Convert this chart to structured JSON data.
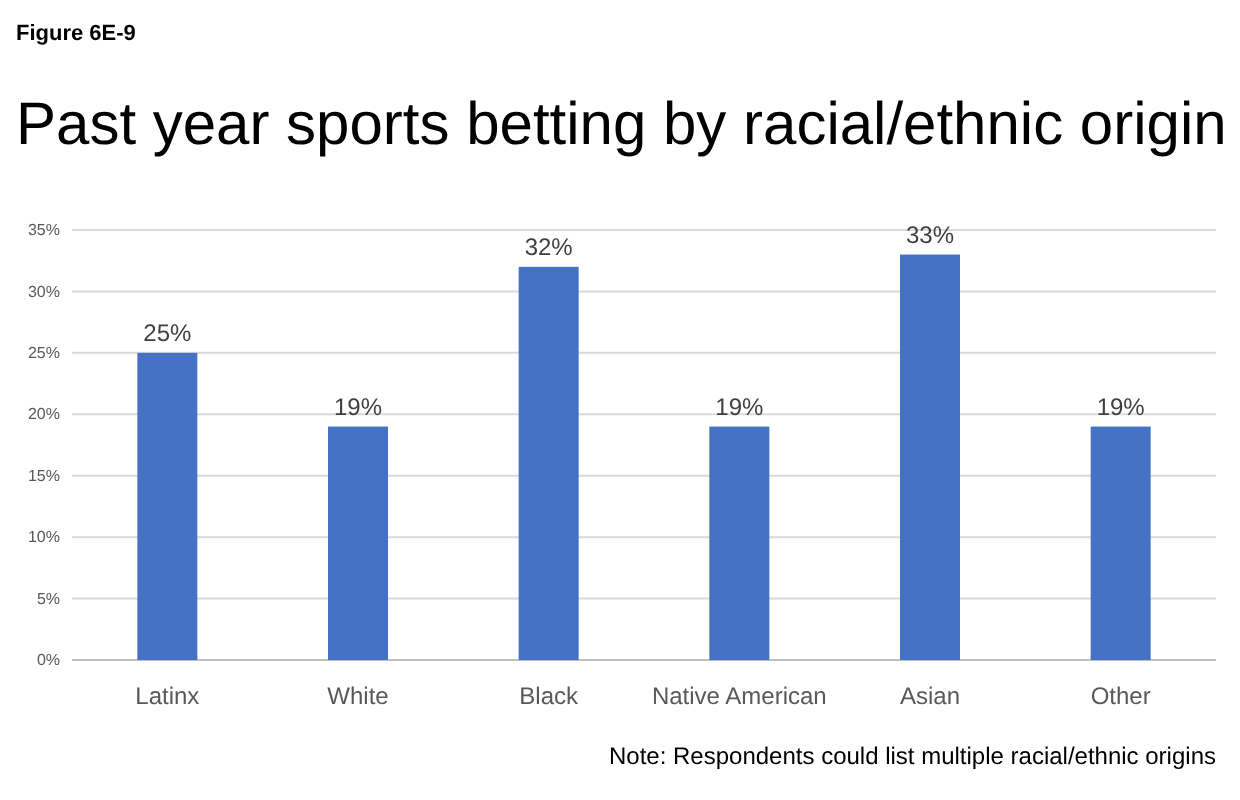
{
  "chart_data": {
    "type": "bar",
    "title": "Past year sports betting by racial/ethnic origin",
    "annotations": [
      "Figure 6E-9",
      "Note:  Respondents could list multiple racial/ethnic origins"
    ],
    "categories": [
      "Latinx",
      "White",
      "Black",
      "Native American",
      "Asian",
      "Other"
    ],
    "values": [
      25,
      19,
      32,
      19,
      33,
      19
    ],
    "value_labels": [
      "25%",
      "19%",
      "32%",
      "19%",
      "33%",
      "19%"
    ],
    "color": "#4472c4",
    "ylim": [
      0,
      35
    ],
    "yticks": [
      {
        "value": 0,
        "label": "0%"
      },
      {
        "value": 5,
        "label": "5%"
      },
      {
        "value": 10,
        "label": "10%"
      },
      {
        "value": 15,
        "label": "15%"
      },
      {
        "value": 20,
        "label": "20%"
      },
      {
        "value": 25,
        "label": "25%"
      },
      {
        "value": 30,
        "label": "30%"
      },
      {
        "value": 35,
        "label": "35%"
      }
    ],
    "grid": "y"
  }
}
